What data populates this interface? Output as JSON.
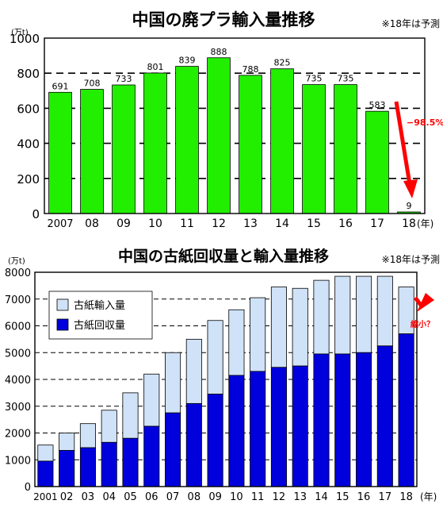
{
  "chart_data": [
    {
      "type": "bar",
      "title": "中国の廃プラ輸入量推移",
      "note": "※18年は予測",
      "unit": "(万t)",
      "x_unit": "(年)",
      "categories": [
        "2007",
        "08",
        "09",
        "10",
        "11",
        "12",
        "13",
        "14",
        "15",
        "16",
        "17",
        "18"
      ],
      "values": [
        691,
        708,
        733,
        801,
        839,
        888,
        788,
        825,
        735,
        735,
        583,
        9
      ],
      "data_labels": [
        "691",
        "708",
        "733",
        "801",
        "839",
        "888",
        "788",
        "825",
        "735",
        "735",
        "583",
        "9"
      ],
      "y_ticks": [
        "0",
        "200",
        "400",
        "600",
        "800",
        "1000"
      ],
      "ylim": [
        0,
        1000
      ],
      "grid": "dashed-horizontal",
      "bar_color": "#22ee00",
      "arrow_color": "#ff0000",
      "annotation": "−98.5%"
    },
    {
      "type": "bar",
      "stacked": true,
      "title": "中国の古紙回収量と輸入量推移",
      "note": "※18年は予測",
      "unit": "(万t)",
      "x_unit": "(年)",
      "categories": [
        "2001",
        "02",
        "03",
        "04",
        "05",
        "06",
        "07",
        "08",
        "09",
        "10",
        "11",
        "12",
        "13",
        "14",
        "15",
        "16",
        "17",
        "18"
      ],
      "series": [
        {
          "name": "古紙回収量",
          "color": "#0000dd",
          "values": [
            950,
            1350,
            1450,
            1650,
            1800,
            2250,
            2750,
            3100,
            3450,
            4150,
            4300,
            4450,
            4500,
            4950,
            4950,
            5000,
            5250,
            5700
          ]
        },
        {
          "name": "古紙輸入量",
          "color": "#cfe2f7",
          "values": [
            600,
            650,
            900,
            1200,
            1700,
            1950,
            2250,
            2400,
            2750,
            2450,
            2750,
            3000,
            2900,
            2750,
            2900,
            2850,
            2600,
            1750
          ]
        }
      ],
      "y_ticks": [
        "0",
        "1000",
        "2000",
        "3000",
        "4000",
        "5000",
        "6000",
        "7000",
        "8000"
      ],
      "ylim": [
        0,
        8000
      ],
      "grid": "dashed-horizontal",
      "legend_position": "upper-left",
      "arrow_color": "#ff0000",
      "annotation": "縮小？"
    }
  ]
}
